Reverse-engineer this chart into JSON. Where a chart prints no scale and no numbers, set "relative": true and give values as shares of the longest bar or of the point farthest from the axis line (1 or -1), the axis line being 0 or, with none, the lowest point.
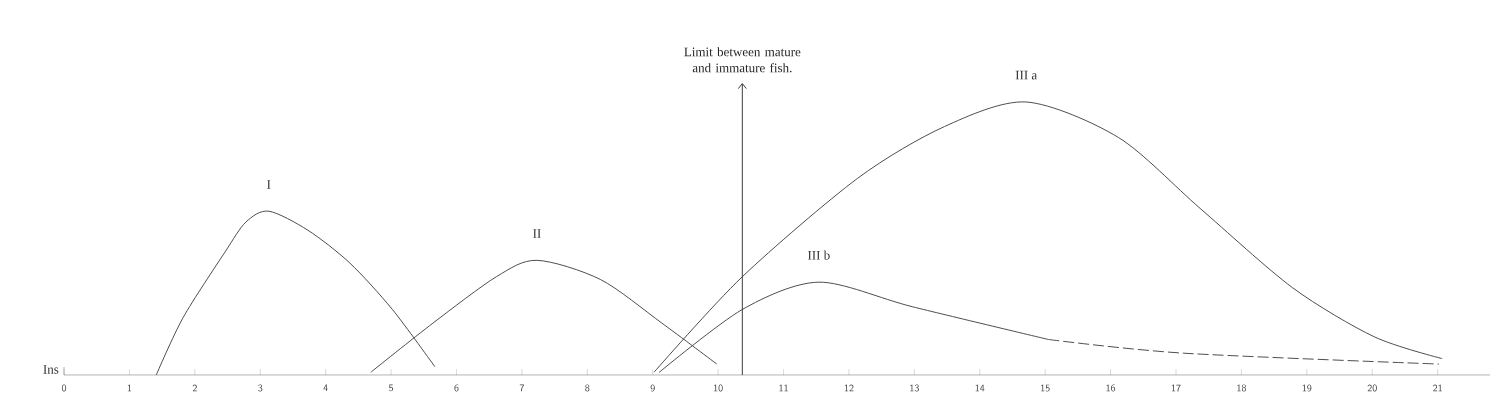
{
  "chart_data": {
    "type": "line",
    "relative": true,
    "xlabel": "Ins",
    "xlim": [
      0,
      21.8
    ],
    "xticks": [
      0,
      1,
      2,
      3,
      4,
      5,
      6,
      7,
      8,
      9,
      10,
      11,
      12,
      13,
      14,
      15,
      16,
      17,
      18,
      19,
      20,
      21
    ],
    "series": [
      {
        "name": "I",
        "color": "#3a3a3a",
        "line_style": "solid",
        "x": [
          1.41,
          1.82,
          2.46,
          2.78,
          3.13,
          3.73,
          4.37,
          5.02,
          5.67
        ],
        "values": [
          0,
          0.21,
          0.45,
          0.56,
          0.6,
          0.53,
          0.41,
          0.24,
          0.03
        ]
      },
      {
        "name": "II",
        "color": "#3a3a3a",
        "line_style": "solid",
        "x": [
          4.69,
          5.64,
          6.61,
          7.23,
          8.2,
          9.14,
          9.98
        ],
        "values": [
          0.01,
          0.19,
          0.36,
          0.42,
          0.35,
          0.19,
          0.04
        ]
      },
      {
        "name": "III a",
        "color": "#3a3a3a",
        "line_style": "solid",
        "x": [
          9.02,
          10.37,
          12.13,
          13.46,
          14.71,
          16.12,
          17.37,
          18.78,
          20.03,
          21.07
        ],
        "values": [
          0.01,
          0.36,
          0.72,
          0.91,
          1,
          0.87,
          0.61,
          0.32,
          0.14,
          0.06
        ]
      },
      {
        "name": "III b",
        "color": "#3a3a3a",
        "line_style": "solid",
        "x": [
          9.1,
          10.37,
          11.54,
          12.97,
          15.05
        ],
        "values": [
          0.01,
          0.24,
          0.34,
          0.25,
          0.13
        ]
      },
      {
        "color": "#3a3a3a",
        "line_style": "dashed",
        "x": [
          15.05,
          17.11,
          21.02
        ],
        "values": [
          0.13,
          0.08,
          0.04
        ]
      }
    ],
    "ref_lines": [
      {
        "axis": "x",
        "value": 10.37,
        "label": "Limit between mature and immature fish."
      }
    ]
  }
}
